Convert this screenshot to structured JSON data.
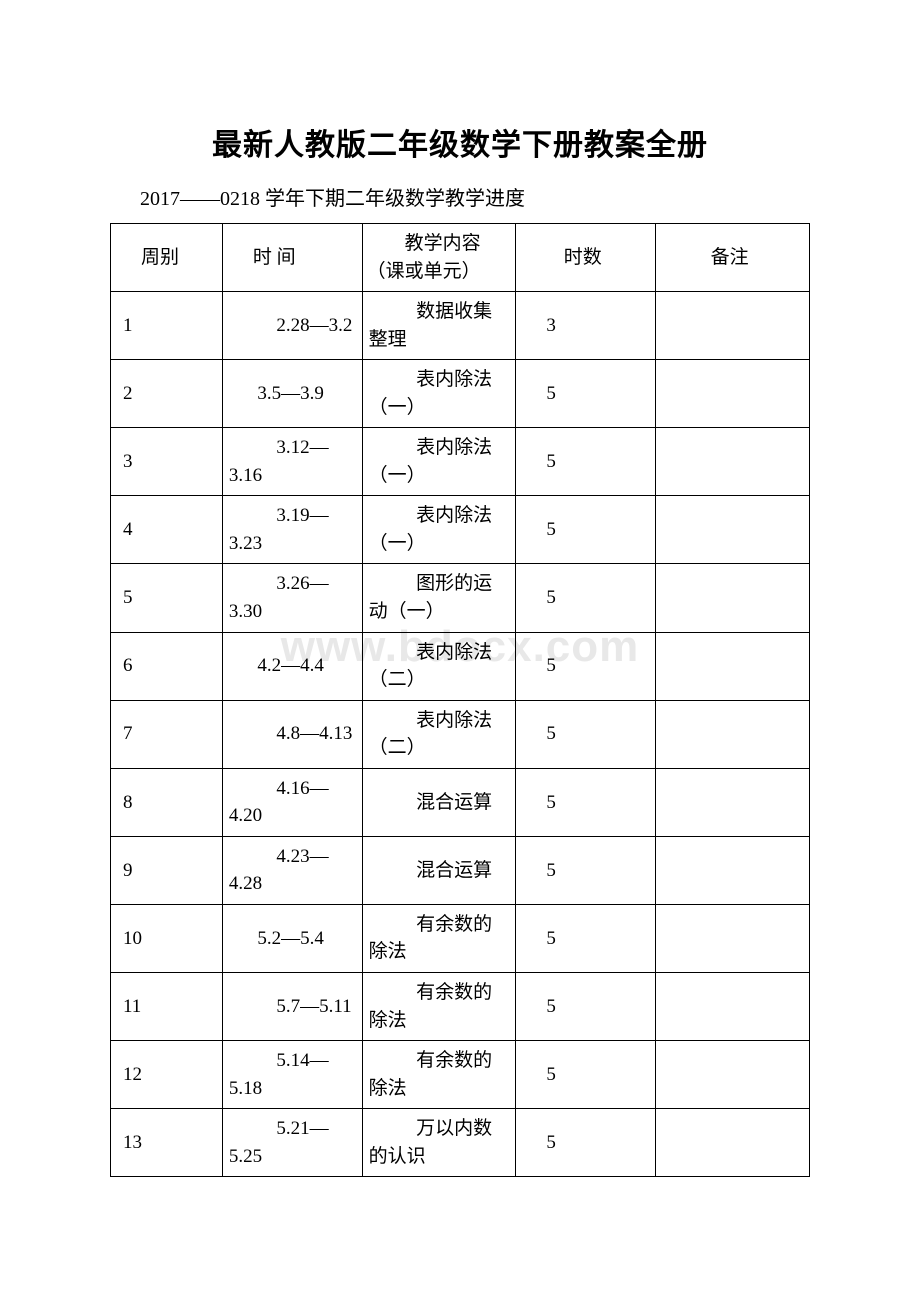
{
  "title": "最新人教版二年级数学下册教案全册",
  "subtitle": "2017——0218 学年下期二年级数学教学进度",
  "watermark": "www.bdocx.com",
  "headers": {
    "week": "周别",
    "time": "时 间",
    "content": "教学内容（课或单元）",
    "hours": "时数",
    "note": "备注"
  },
  "rows": [
    {
      "week": "1",
      "time": "2.28—3.2",
      "time_single": false,
      "content": "数据收集整理",
      "hours": "3",
      "note": ""
    },
    {
      "week": "2",
      "time": "3.5—3.9",
      "time_single": true,
      "content": "表内除法（一）",
      "hours": "5",
      "note": ""
    },
    {
      "week": "3",
      "time": "3.12—3.16",
      "time_single": false,
      "content": "表内除法（一）",
      "hours": "5",
      "note": ""
    },
    {
      "week": "4",
      "time": "3.19—3.23",
      "time_single": false,
      "content": "表内除法（一）",
      "hours": "5",
      "note": ""
    },
    {
      "week": "5",
      "time": "3.26—3.30",
      "time_single": false,
      "content": "图形的运动（一）",
      "hours": "5",
      "note": ""
    },
    {
      "week": "6",
      "time": "4.2—4.4",
      "time_single": true,
      "content": "表内除法（二）",
      "hours": "5",
      "note": ""
    },
    {
      "week": "7",
      "time": "4.8—4.13",
      "time_single": false,
      "content": "表内除法（二）",
      "hours": "5",
      "note": ""
    },
    {
      "week": "8",
      "time": "4.16—4.20",
      "time_single": false,
      "content": "混合运算",
      "hours": "5",
      "note": ""
    },
    {
      "week": "9",
      "time": "4.23—4.28",
      "time_single": false,
      "content": "混合运算",
      "hours": "5",
      "note": ""
    },
    {
      "week": "10",
      "time": "5.2—5.4",
      "time_single": true,
      "content": "有余数的除法",
      "hours": "5",
      "note": ""
    },
    {
      "week": "11",
      "time": "5.7—5.11",
      "time_single": false,
      "content": "有余数的除法",
      "hours": "5",
      "note": ""
    },
    {
      "week": "12",
      "time": "5.14—5.18",
      "time_single": false,
      "content": "有余数的除法",
      "hours": "5",
      "note": ""
    },
    {
      "week": "13",
      "time": "5.21—5.25",
      "time_single": false,
      "content": "万以内数的认识",
      "hours": "5",
      "note": ""
    }
  ]
}
